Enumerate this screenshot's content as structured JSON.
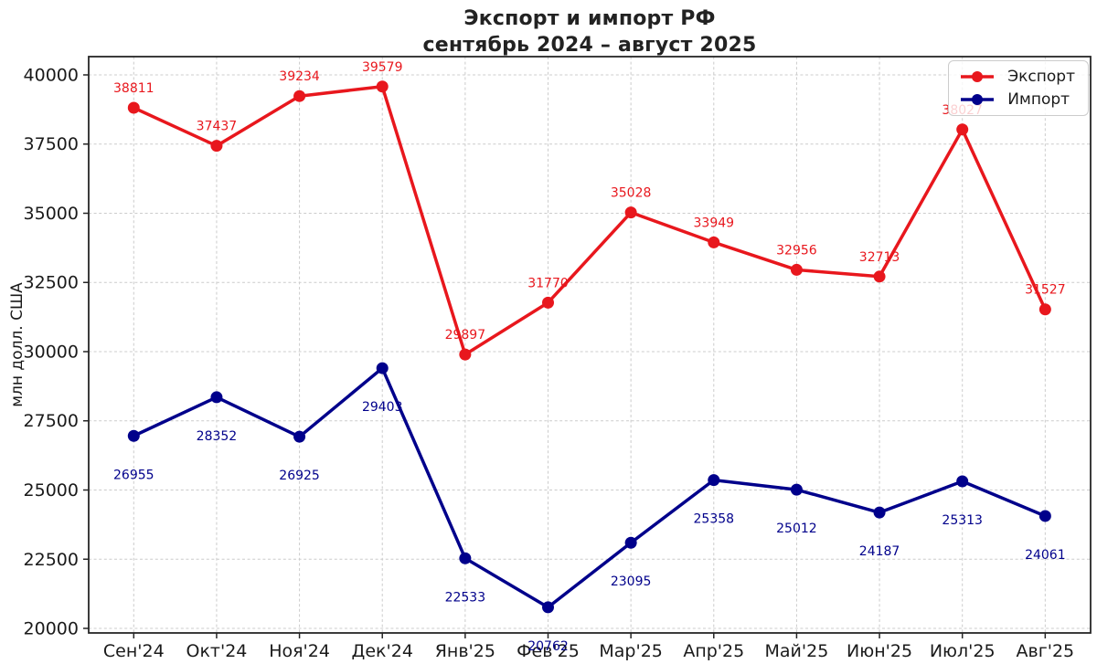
{
  "title": {
    "line1": "Экспорт и импорт РФ",
    "line2": "сентябрь 2024 – август 2025"
  },
  "chart_data": {
    "type": "line",
    "title": "Экспорт и импорт РФ сентябрь 2024 – август 2025",
    "xlabel": "",
    "ylabel": "млн долл. США",
    "categories": [
      "Сен'24",
      "Окт'24",
      "Ноя'24",
      "Дек'24",
      "Янв'25",
      "Фев'25",
      "Мар'25",
      "Апр'25",
      "Май'25",
      "Июн'25",
      "Июл'25",
      "Авг'25"
    ],
    "series": [
      {
        "key": "export",
        "name": "Экспорт",
        "color": "#e8171d",
        "values": [
          38811,
          37437,
          39234,
          39579,
          29897,
          31770,
          35028,
          33949,
          32956,
          32713,
          38027,
          31527
        ],
        "label_offset": -22
      },
      {
        "key": "import",
        "name": "Импорт",
        "color": "#00008b",
        "values": [
          26955,
          28352,
          26925,
          29403,
          22533,
          20762,
          23095,
          25358,
          25012,
          24187,
          25313,
          24061
        ],
        "label_offset": 42
      }
    ],
    "yticks": [
      20000,
      22500,
      25000,
      27500,
      30000,
      32500,
      35000,
      37500,
      40000
    ],
    "ylim": [
      19835,
      40660
    ],
    "grid": true,
    "grid_color": "#cccccc",
    "axis_color": "#262626",
    "tick_label_color": "#1a1a1a",
    "legend_position": "upper right"
  }
}
